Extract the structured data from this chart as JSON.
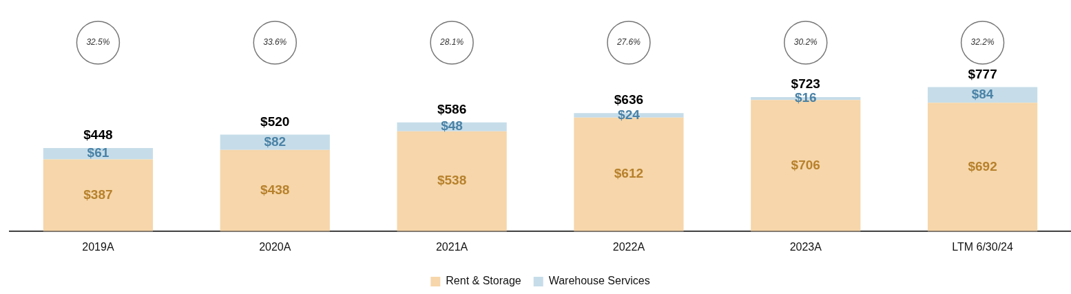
{
  "chart_data": {
    "type": "bar",
    "stacked": true,
    "legend": "bottom",
    "categories": [
      "2019A",
      "2020A",
      "2021A",
      "2022A",
      "2023A",
      "LTM 6/30/24"
    ],
    "series": [
      {
        "name": "Rent & Storage",
        "color": "#f6d6aa",
        "values": [
          387,
          438,
          538,
          612,
          706,
          692
        ],
        "value_labels": [
          "$387",
          "$438",
          "$538",
          "$612",
          "$706",
          "$692"
        ]
      },
      {
        "name": "Warehouse Services",
        "color": "#c6dde9",
        "values": [
          61,
          82,
          48,
          24,
          16,
          84
        ],
        "value_labels": [
          "$61",
          "$82",
          "$48",
          "$24",
          "$16",
          "$84"
        ]
      }
    ],
    "totals": [
      "$448",
      "$520",
      "$586",
      "$636",
      "$723",
      "$777"
    ],
    "annotations": [
      "32.5%",
      "33.6%",
      "28.1%",
      "27.6%",
      "30.2%",
      "32.2%"
    ]
  }
}
